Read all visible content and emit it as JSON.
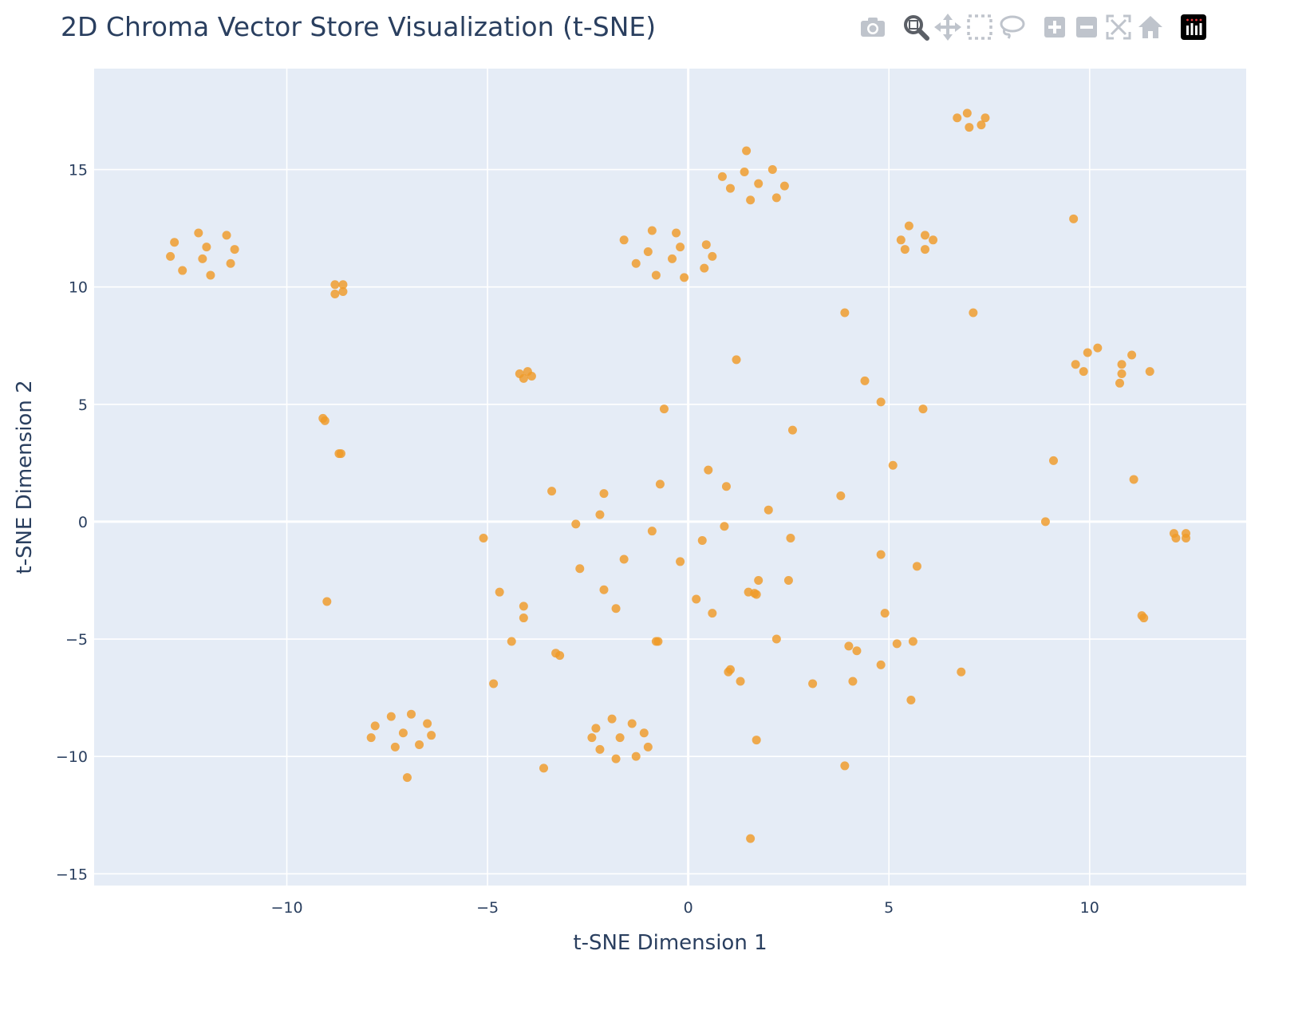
{
  "modebar": {
    "buttons": [
      "camera-icon",
      "zoom-icon",
      "pan-icon",
      "box-select-icon",
      "lasso-select-icon",
      "zoom-in-icon",
      "zoom-out-icon",
      "autoscale-icon",
      "reset-axes-icon",
      "plotly-logo-icon"
    ]
  },
  "colors": {
    "marker": "#EF9A27",
    "plot_bg": "#E5ECF6",
    "grid": "#ffffff",
    "text": "#2a3f5f"
  },
  "chart_data": {
    "type": "scatter",
    "title": "2D Chroma Vector Store Visualization (t-SNE)",
    "xlabel": "t-SNE Dimension 1",
    "ylabel": "t-SNE Dimension 2",
    "xlim": [
      -14.8,
      13.9
    ],
    "ylim": [
      -15.5,
      19.3
    ],
    "xticks": [
      -10,
      -5,
      0,
      5,
      10
    ],
    "yticks": [
      -15,
      -10,
      -5,
      0,
      5,
      10,
      15
    ],
    "xtick_labels": [
      "−10",
      "−5",
      "0",
      "5",
      "10"
    ],
    "ytick_labels": [
      "−15",
      "−10",
      "−5",
      "0",
      "5",
      "10",
      "15"
    ],
    "grid": true,
    "points": [
      [
        -12.9,
        11.3
      ],
      [
        -12.8,
        11.9
      ],
      [
        -12.6,
        10.7
      ],
      [
        -12.2,
        12.3
      ],
      [
        -12.1,
        11.2
      ],
      [
        -12.0,
        11.7
      ],
      [
        -11.9,
        10.5
      ],
      [
        -11.5,
        12.2
      ],
      [
        -11.4,
        11.0
      ],
      [
        -11.3,
        11.6
      ],
      [
        -8.8,
        10.1
      ],
      [
        -8.8,
        9.7
      ],
      [
        -8.6,
        10.1
      ],
      [
        -8.6,
        9.8
      ],
      [
        -9.1,
        4.4
      ],
      [
        -9.05,
        4.3
      ],
      [
        -8.7,
        2.9
      ],
      [
        -8.65,
        2.9
      ],
      [
        -9.0,
        -3.4
      ],
      [
        -7.9,
        -9.2
      ],
      [
        -7.8,
        -8.7
      ],
      [
        -7.4,
        -8.3
      ],
      [
        -7.3,
        -9.6
      ],
      [
        -7.1,
        -9.0
      ],
      [
        -7.0,
        -10.9
      ],
      [
        -6.9,
        -8.2
      ],
      [
        -6.7,
        -9.5
      ],
      [
        -6.5,
        -8.6
      ],
      [
        -6.4,
        -9.1
      ],
      [
        -4.2,
        6.3
      ],
      [
        -4.1,
        6.1
      ],
      [
        -4.0,
        6.4
      ],
      [
        -3.9,
        6.2
      ],
      [
        -5.1,
        -0.7
      ],
      [
        -4.7,
        -3.0
      ],
      [
        -4.4,
        -5.1
      ],
      [
        -4.85,
        -6.9
      ],
      [
        -4.1,
        -3.6
      ],
      [
        -4.1,
        -4.1
      ],
      [
        -3.4,
        1.3
      ],
      [
        -3.3,
        -5.6
      ],
      [
        -3.2,
        -5.7
      ],
      [
        -3.6,
        -10.5
      ],
      [
        -2.8,
        -0.1
      ],
      [
        -2.7,
        -2.0
      ],
      [
        -2.2,
        0.3
      ],
      [
        -2.1,
        1.2
      ],
      [
        -2.1,
        -2.9
      ],
      [
        -1.8,
        -3.7
      ],
      [
        -1.6,
        -1.6
      ],
      [
        -0.9,
        -0.4
      ],
      [
        -0.8,
        -5.1
      ],
      [
        -0.75,
        -5.1
      ],
      [
        -0.7,
        1.6
      ],
      [
        -0.2,
        -1.7
      ],
      [
        -2.4,
        -9.2
      ],
      [
        -2.3,
        -8.8
      ],
      [
        -2.2,
        -9.7
      ],
      [
        -1.9,
        -8.4
      ],
      [
        -1.8,
        -10.1
      ],
      [
        -1.7,
        -9.2
      ],
      [
        -1.4,
        -8.6
      ],
      [
        -1.3,
        -10.0
      ],
      [
        -1.1,
        -9.0
      ],
      [
        -1.0,
        -9.6
      ],
      [
        -1.6,
        12.0
      ],
      [
        -1.3,
        11.0
      ],
      [
        -1.0,
        11.5
      ],
      [
        -0.9,
        12.4
      ],
      [
        -0.8,
        10.5
      ],
      [
        -0.4,
        11.2
      ],
      [
        -0.3,
        12.3
      ],
      [
        -0.2,
        11.7
      ],
      [
        -0.1,
        10.4
      ],
      [
        0.4,
        10.8
      ],
      [
        0.45,
        11.8
      ],
      [
        0.6,
        11.3
      ],
      [
        0.85,
        14.7
      ],
      [
        1.05,
        14.2
      ],
      [
        1.4,
        14.9
      ],
      [
        1.45,
        15.8
      ],
      [
        1.55,
        13.7
      ],
      [
        1.75,
        14.4
      ],
      [
        2.1,
        15.0
      ],
      [
        2.2,
        13.8
      ],
      [
        2.4,
        14.3
      ],
      [
        -0.6,
        4.8
      ],
      [
        0.5,
        2.2
      ],
      [
        0.95,
        1.5
      ],
      [
        1.2,
        6.9
      ],
      [
        2.0,
        0.5
      ],
      [
        2.6,
        3.9
      ],
      [
        0.35,
        -0.8
      ],
      [
        0.9,
        -0.2
      ],
      [
        0.2,
        -3.3
      ],
      [
        0.6,
        -3.9
      ],
      [
        1.0,
        -6.4
      ],
      [
        1.05,
        -6.3
      ],
      [
        1.3,
        -6.8
      ],
      [
        1.5,
        -3.0
      ],
      [
        1.65,
        -3.05
      ],
      [
        1.75,
        -2.5
      ],
      [
        1.7,
        -3.1
      ],
      [
        2.2,
        -5.0
      ],
      [
        2.5,
        -2.5
      ],
      [
        2.55,
        -0.7
      ],
      [
        1.7,
        -9.3
      ],
      [
        3.1,
        -6.9
      ],
      [
        1.55,
        -13.5
      ],
      [
        3.9,
        8.9
      ],
      [
        4.4,
        6.0
      ],
      [
        4.8,
        5.1
      ],
      [
        3.8,
        1.1
      ],
      [
        5.1,
        2.4
      ],
      [
        4.8,
        -1.4
      ],
      [
        4.9,
        -3.9
      ],
      [
        4.0,
        -5.3
      ],
      [
        4.2,
        -5.5
      ],
      [
        4.8,
        -6.1
      ],
      [
        4.1,
        -6.8
      ],
      [
        3.9,
        -10.4
      ],
      [
        5.2,
        -5.2
      ],
      [
        5.6,
        -5.1
      ],
      [
        5.7,
        -1.9
      ],
      [
        5.55,
        -7.6
      ],
      [
        5.3,
        12.0
      ],
      [
        5.4,
        11.6
      ],
      [
        5.5,
        12.6
      ],
      [
        5.9,
        11.6
      ],
      [
        5.9,
        12.2
      ],
      [
        6.1,
        12.0
      ],
      [
        5.85,
        4.8
      ],
      [
        6.7,
        17.2
      ],
      [
        6.95,
        17.4
      ],
      [
        7.0,
        16.8
      ],
      [
        7.3,
        16.9
      ],
      [
        7.4,
        17.2
      ],
      [
        7.1,
        8.9
      ],
      [
        6.8,
        -6.4
      ],
      [
        9.6,
        12.9
      ],
      [
        8.9,
        0.0
      ],
      [
        9.1,
        2.6
      ],
      [
        9.65,
        6.7
      ],
      [
        9.85,
        6.4
      ],
      [
        9.95,
        7.2
      ],
      [
        10.2,
        7.4
      ],
      [
        10.75,
        5.9
      ],
      [
        10.8,
        6.3
      ],
      [
        10.8,
        6.7
      ],
      [
        11.05,
        7.1
      ],
      [
        11.5,
        6.4
      ],
      [
        11.1,
        1.8
      ],
      [
        11.3,
        -4.0
      ],
      [
        11.35,
        -4.1
      ],
      [
        12.1,
        -0.5
      ],
      [
        12.15,
        -0.7
      ],
      [
        12.4,
        -0.5
      ],
      [
        12.4,
        -0.7
      ]
    ]
  }
}
